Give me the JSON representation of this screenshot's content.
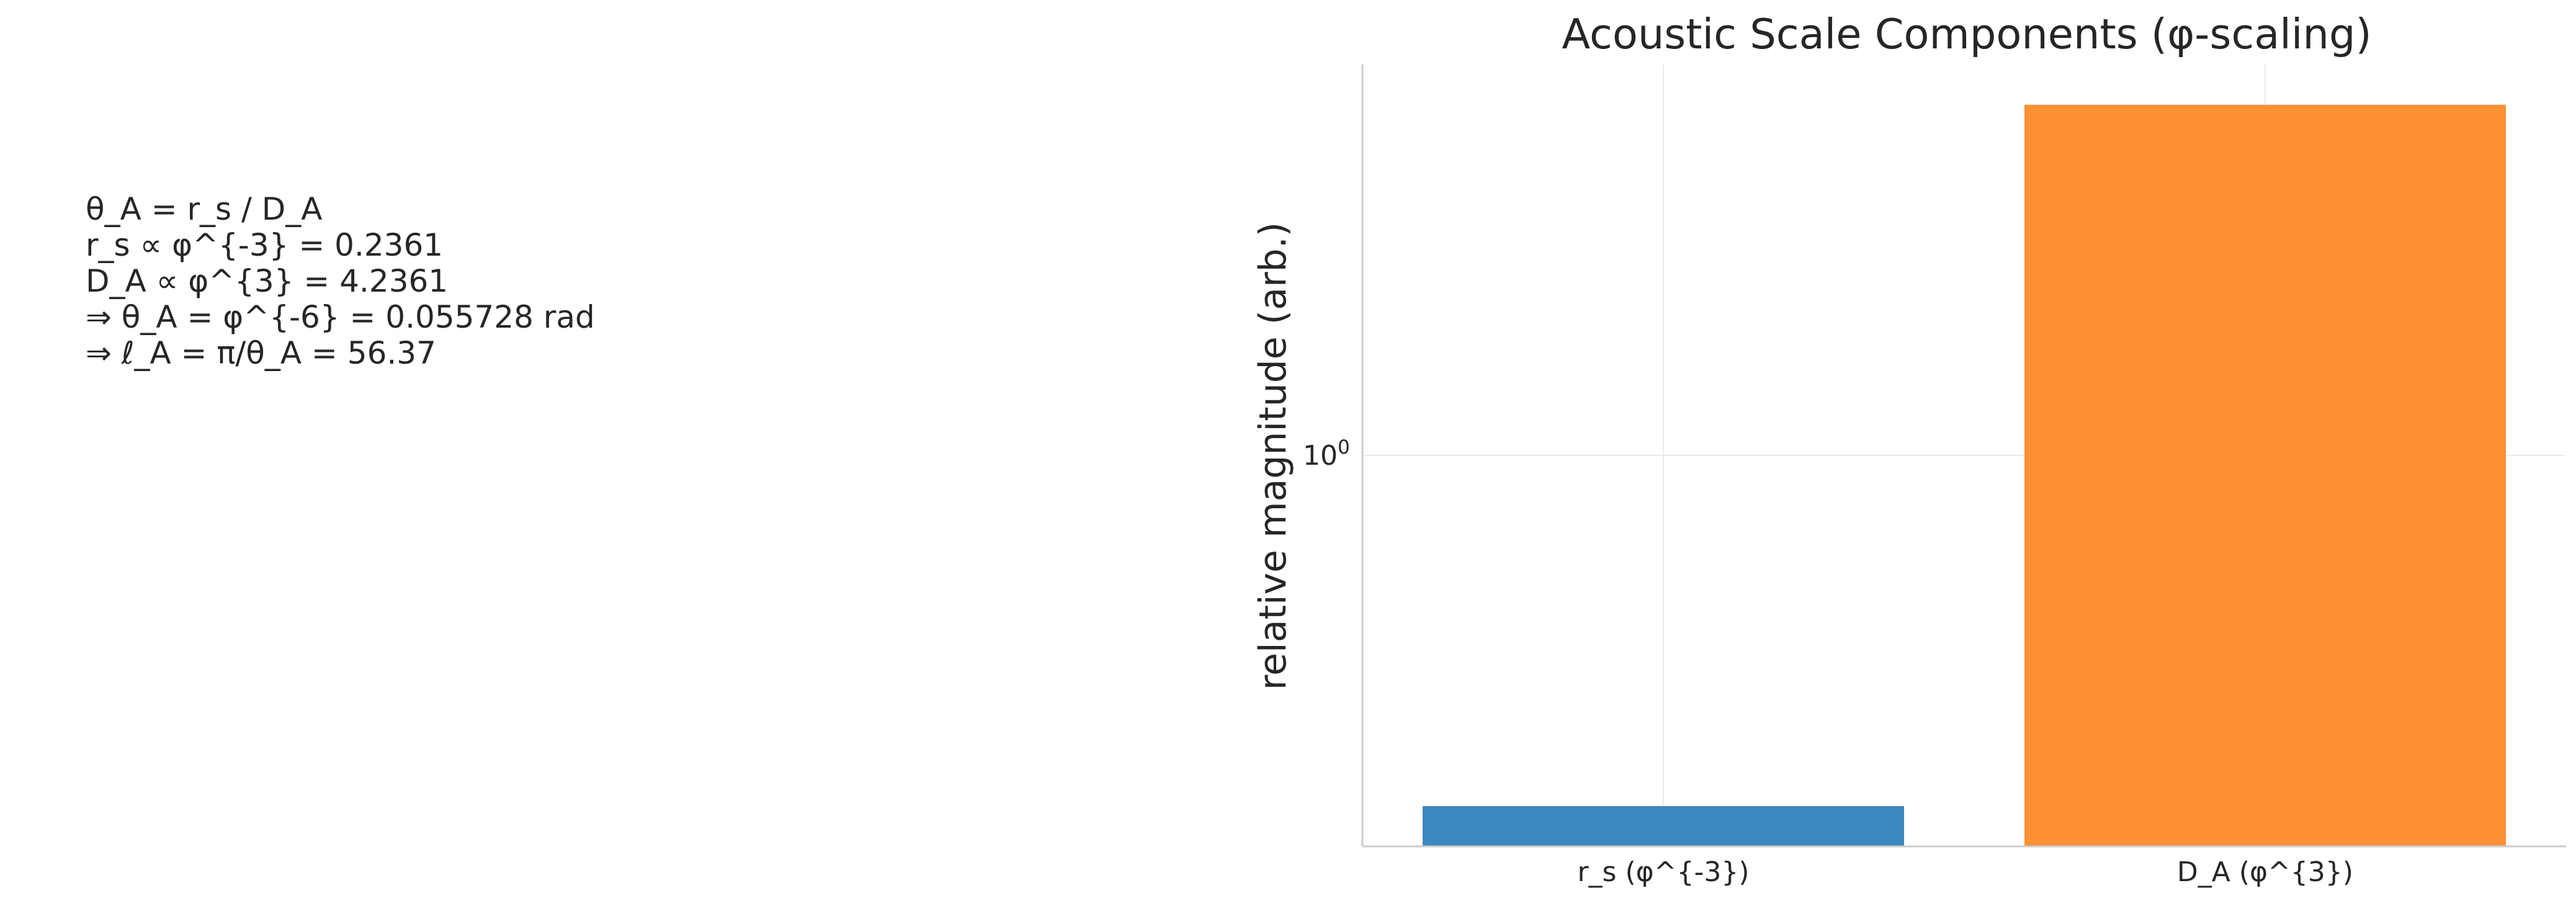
{
  "annotation": {
    "lines": [
      "θ_A = r_s / D_A",
      "r_s ∝ φ^{-3} = 0.2361",
      "D_A ∝ φ^{3} = 4.2361",
      "⇒ θ_A = φ^{-6} = 0.055728 rad",
      "⇒ ℓ_A = π/θ_A = 56.37"
    ]
  },
  "chart_data": {
    "type": "bar",
    "title": "Acoustic Scale Components (φ-scaling)",
    "xlabel": "",
    "ylabel": "relative magnitude (arb.)",
    "yscale": "log",
    "ylim": [
      0.2,
      5
    ],
    "yticks": [
      {
        "value": 1,
        "base": "10",
        "exp": "0"
      }
    ],
    "grid": true,
    "categories": [
      "r_s (φ^{-3})",
      "D_A (φ^{3})"
    ],
    "values": [
      0.2361,
      4.2361
    ],
    "colors": [
      "#3d87c0",
      "#fe9035"
    ]
  }
}
